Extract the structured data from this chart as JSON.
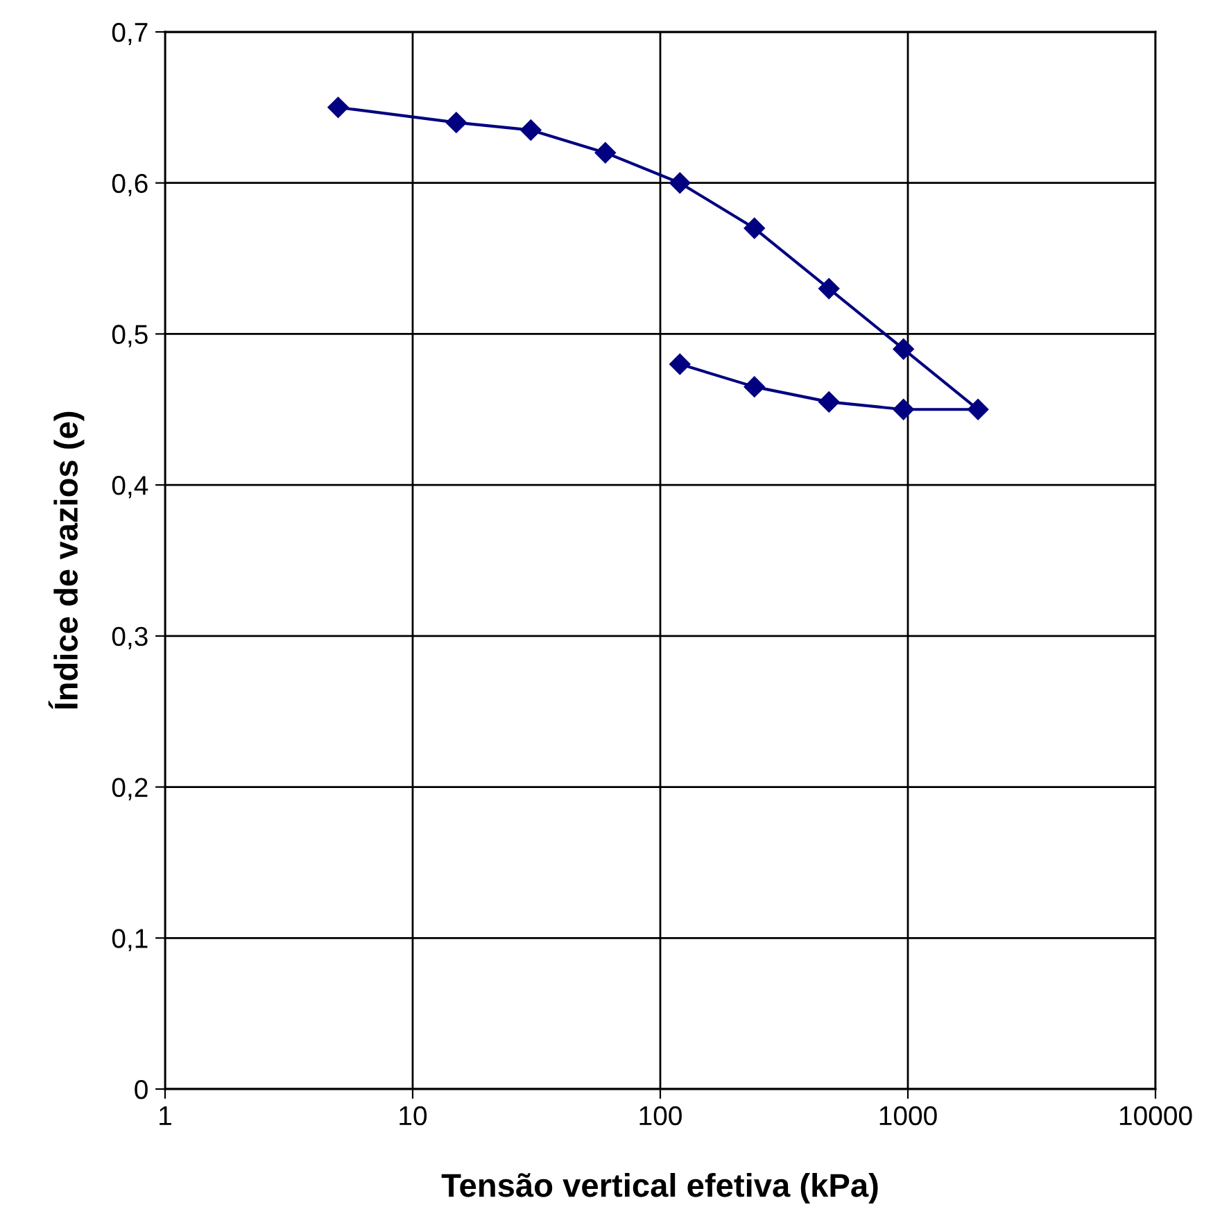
{
  "chart_data": {
    "type": "line",
    "xlabel": "Tensão vertical efetiva (kPa)",
    "ylabel": "Índice de vazios (e)",
    "x": [
      5,
      15,
      30,
      60,
      120,
      240,
      480,
      960,
      1920,
      960,
      480,
      240,
      120
    ],
    "series": [
      {
        "color": "#000080",
        "values": [
          0.65,
          0.64,
          0.635,
          0.62,
          0.6,
          0.57,
          0.53,
          0.49,
          0.45,
          0.45,
          0.455,
          0.465,
          0.48
        ]
      }
    ],
    "log": "x",
    "xlim": [
      1,
      10000
    ],
    "xticks": [
      1,
      10,
      100,
      1000,
      10000
    ],
    "ylim": [
      0,
      0.7
    ],
    "yticks": [
      0,
      {
        "value": 0.1,
        "label": "0,1"
      },
      {
        "value": 0.2,
        "label": "0,2"
      },
      {
        "value": 0.3,
        "label": "0,3"
      },
      {
        "value": 0.4,
        "label": "0,4"
      },
      {
        "value": 0.5,
        "label": "0,5"
      },
      {
        "value": 0.6,
        "label": "0,6"
      },
      {
        "value": 0.7,
        "label": "0,7"
      }
    ],
    "grid": true,
    "marker": "diamond",
    "line_style": "solid"
  }
}
